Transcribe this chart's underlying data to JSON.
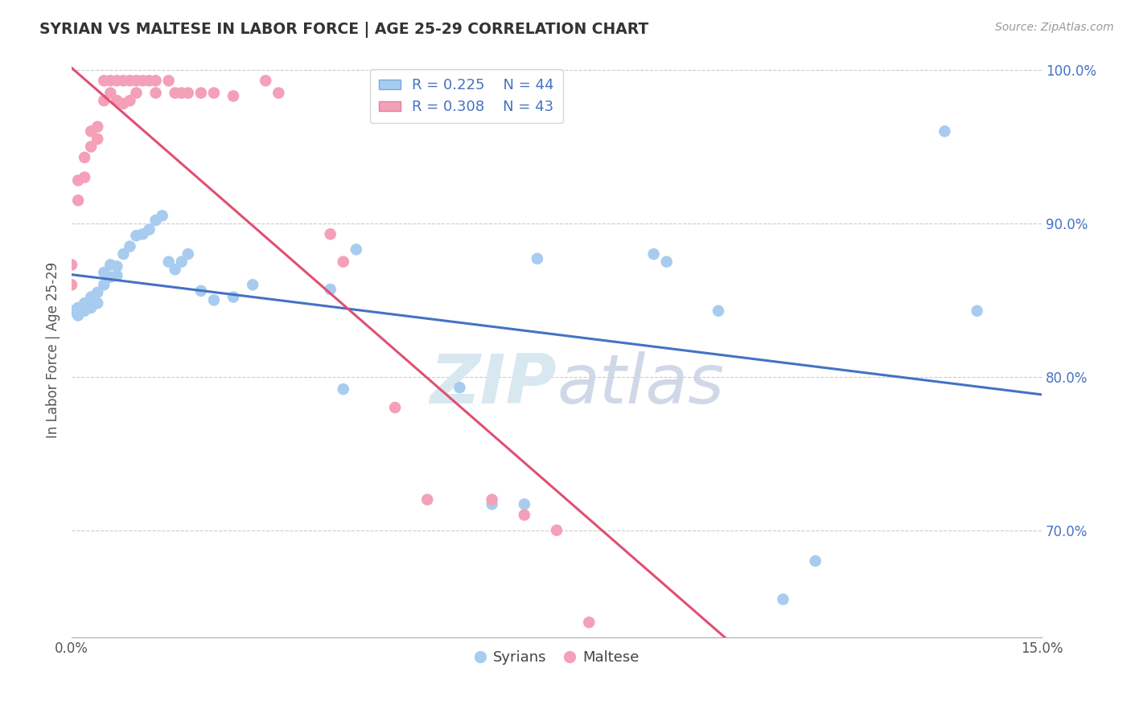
{
  "title": "SYRIAN VS MALTESE IN LABOR FORCE | AGE 25-29 CORRELATION CHART",
  "source": "Source: ZipAtlas.com",
  "ylabel": "In Labor Force | Age 25-29",
  "xmin": 0.0,
  "xmax": 0.15,
  "ymin": 0.63,
  "ymax": 1.005,
  "yticks": [
    0.7,
    0.8,
    0.9,
    1.0
  ],
  "ytick_labels": [
    "70.0%",
    "80.0%",
    "90.0%",
    "100.0%"
  ],
  "xticks": [
    0.0,
    0.03,
    0.06,
    0.09,
    0.12,
    0.15
  ],
  "xtick_labels": [
    "0.0%",
    "",
    "",
    "",
    "",
    "15.0%"
  ],
  "legend_r_syrians": "R = 0.225",
  "legend_n_syrians": "N = 44",
  "legend_r_maltese": "R = 0.308",
  "legend_n_maltese": "N = 43",
  "syrian_color": "#A8CCF0",
  "maltese_color": "#F4A0B8",
  "syrian_line_color": "#4472C4",
  "maltese_line_color": "#E05070",
  "syrians_x": [
    0.0,
    0.001,
    0.001,
    0.002,
    0.002,
    0.003,
    0.003,
    0.004,
    0.004,
    0.005,
    0.005,
    0.006,
    0.006,
    0.007,
    0.007,
    0.008,
    0.009,
    0.01,
    0.011,
    0.012,
    0.013,
    0.014,
    0.015,
    0.016,
    0.017,
    0.018,
    0.02,
    0.022,
    0.025,
    0.028,
    0.04,
    0.042,
    0.044,
    0.06,
    0.065,
    0.07,
    0.072,
    0.09,
    0.092,
    0.1,
    0.11,
    0.115,
    0.135,
    0.14
  ],
  "syrians_y": [
    0.843,
    0.845,
    0.84,
    0.848,
    0.843,
    0.852,
    0.845,
    0.855,
    0.848,
    0.868,
    0.86,
    0.873,
    0.865,
    0.872,
    0.866,
    0.88,
    0.885,
    0.892,
    0.893,
    0.896,
    0.902,
    0.905,
    0.875,
    0.87,
    0.875,
    0.88,
    0.856,
    0.85,
    0.852,
    0.86,
    0.857,
    0.792,
    0.883,
    0.793,
    0.717,
    0.717,
    0.877,
    0.88,
    0.875,
    0.843,
    0.655,
    0.68,
    0.96,
    0.843
  ],
  "maltese_x": [
    0.0,
    0.0,
    0.001,
    0.001,
    0.002,
    0.002,
    0.003,
    0.003,
    0.004,
    0.004,
    0.005,
    0.005,
    0.006,
    0.006,
    0.007,
    0.007,
    0.008,
    0.008,
    0.009,
    0.009,
    0.01,
    0.01,
    0.011,
    0.012,
    0.013,
    0.013,
    0.015,
    0.016,
    0.017,
    0.018,
    0.02,
    0.022,
    0.025,
    0.03,
    0.032,
    0.04,
    0.042,
    0.05,
    0.055,
    0.065,
    0.07,
    0.075,
    0.08
  ],
  "maltese_y": [
    0.873,
    0.86,
    0.928,
    0.915,
    0.943,
    0.93,
    0.96,
    0.95,
    0.963,
    0.955,
    0.993,
    0.98,
    0.993,
    0.985,
    0.993,
    0.98,
    0.993,
    0.978,
    0.993,
    0.98,
    0.993,
    0.985,
    0.993,
    0.993,
    0.993,
    0.985,
    0.993,
    0.985,
    0.985,
    0.985,
    0.985,
    0.985,
    0.983,
    0.993,
    0.985,
    0.893,
    0.875,
    0.78,
    0.72,
    0.72,
    0.71,
    0.7,
    0.64
  ],
  "background_color": "#FFFFFF",
  "watermark_zip": "ZIP",
  "watermark_atlas": "atlas",
  "grid_color": "#CCCCCC",
  "legend_entries": [
    "Syrians",
    "Maltese"
  ]
}
